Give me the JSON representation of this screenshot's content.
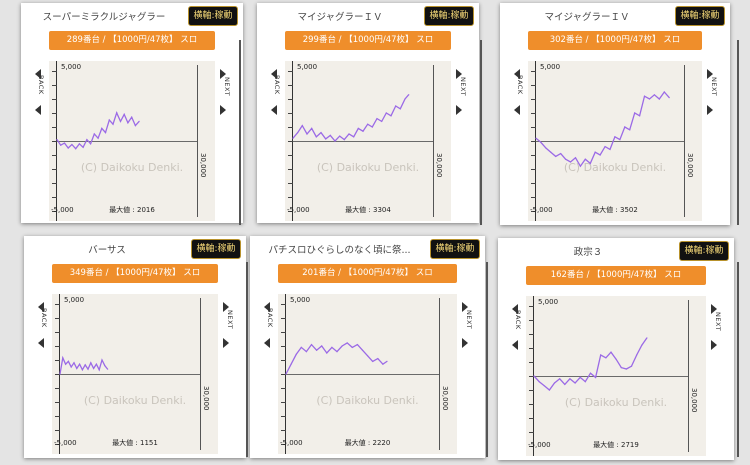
{
  "colors": {
    "line": "#9b6ae6",
    "orange": "#ef8e2b",
    "button_text": "#f3d777"
  },
  "cards": [
    {
      "title": "スーパーミラクルジャグラー",
      "axis_button": "横軸:稼動",
      "info": "289番台 / 【1000円/47枚】 スロ",
      "y_top": "5,000",
      "y_bottom": "-5,000",
      "x_label": "30,000",
      "back": "BACK",
      "next": "NEXT",
      "watermark": "(C) Daikoku Denki.",
      "max_label": "最大値 : 2016",
      "chart_data": {
        "type": "line",
        "ylim": [
          -5000,
          5000
        ],
        "xlim": [
          0,
          30000
        ],
        "x": [
          0,
          800,
          1600,
          2400,
          3200,
          4000,
          4800,
          5600,
          6400,
          7200,
          8000,
          8800,
          9600,
          10400,
          11200,
          12000,
          12800,
          13600,
          14400,
          15200,
          16000,
          16800,
          17600
        ],
        "y": [
          100,
          -300,
          -150,
          -500,
          -250,
          -550,
          -200,
          -450,
          100,
          -200,
          500,
          200,
          900,
          600,
          1500,
          1200,
          2016,
          1400,
          1900,
          1300,
          1700,
          1100,
          1400
        ]
      }
    },
    {
      "title": "マイジャグラーＩＶ",
      "axis_button": "横軸:稼動",
      "info": "299番台 / 【1000円/47枚】 スロ",
      "y_top": "5,000",
      "y_bottom": "-5,000",
      "x_label": "30,000",
      "back": "BACK",
      "next": "NEXT",
      "watermark": "(C) Daikoku Denki.",
      "max_label": "最大値 : 3304",
      "chart_data": {
        "type": "line",
        "ylim": [
          -5000,
          5000
        ],
        "xlim": [
          0,
          30000
        ],
        "x": [
          0,
          1000,
          2000,
          3000,
          4000,
          5000,
          6000,
          7000,
          8000,
          9000,
          10000,
          11000,
          12000,
          13000,
          14000,
          15000,
          16000,
          17000,
          18000,
          19000,
          20000,
          21000,
          22000,
          23000,
          24000,
          24800
        ],
        "y": [
          200,
          600,
          1100,
          500,
          900,
          300,
          600,
          150,
          400,
          0,
          350,
          100,
          500,
          300,
          900,
          700,
          1200,
          1000,
          1600,
          1400,
          2000,
          1800,
          2500,
          2300,
          3000,
          3304
        ]
      }
    },
    {
      "title": "マイジャグラーＩＶ",
      "axis_button": "横軸:稼動",
      "info": "302番台 / 【1000円/47枚】 スロ",
      "y_top": "5,000",
      "y_bottom": "-5,000",
      "x_label": "30,000",
      "back": "BACK",
      "next": "NEXT",
      "watermark": "(C) Daikoku Denki.",
      "max_label": "最大値 : 3502",
      "chart_data": {
        "type": "line",
        "ylim": [
          -5000,
          5000
        ],
        "xlim": [
          0,
          30000
        ],
        "x": [
          0,
          1000,
          2000,
          3000,
          4000,
          5000,
          6000,
          7000,
          8000,
          9000,
          10000,
          11000,
          12000,
          13000,
          14000,
          15000,
          16000,
          17000,
          18000,
          19000,
          20000,
          21000,
          22000,
          23000,
          24000,
          25000,
          26000,
          27000
        ],
        "y": [
          200,
          -100,
          -500,
          -800,
          -1100,
          -900,
          -1300,
          -1500,
          -1200,
          -1800,
          -1300,
          -1600,
          -800,
          -1000,
          -400,
          -600,
          300,
          100,
          1000,
          800,
          2000,
          1800,
          3200,
          3000,
          3300,
          3000,
          3502,
          3100
        ]
      }
    },
    {
      "title": "バーサス",
      "axis_button": "横軸:稼動",
      "info": "349番台 / 【1000円/47枚】 スロ",
      "y_top": "5,000",
      "y_bottom": "-5,000",
      "x_label": "30,000",
      "back": "BACK",
      "next": "NEXT",
      "watermark": "(C) Daikoku Denki.",
      "max_label": "最大値 : 1151",
      "chart_data": {
        "type": "line",
        "ylim": [
          -5000,
          5000
        ],
        "xlim": [
          0,
          30000
        ],
        "x": [
          0,
          600,
          1200,
          1800,
          2400,
          3000,
          3600,
          4200,
          4800,
          5400,
          6000,
          6600,
          7200,
          7800,
          8400,
          9000,
          9600,
          10200
        ],
        "y": [
          0,
          1151,
          700,
          900,
          500,
          800,
          400,
          700,
          300,
          650,
          350,
          800,
          400,
          700,
          300,
          1000,
          600,
          350
        ]
      }
    },
    {
      "title": "パチスロひぐらしのなく頃に祭...",
      "axis_button": "横軸:稼動",
      "info": "201番台 / 【1000円/47枚】 スロ",
      "y_top": "5,000",
      "y_bottom": "-5,000",
      "x_label": "30,000",
      "back": "BACK",
      "next": "NEXT",
      "watermark": "(C) Daikoku Denki.",
      "max_label": "最大値 : 2220",
      "chart_data": {
        "type": "line",
        "ylim": [
          -5000,
          5000
        ],
        "xlim": [
          0,
          30000
        ],
        "x": [
          0,
          1000,
          2000,
          3000,
          4000,
          5000,
          6000,
          7000,
          8000,
          9000,
          10000,
          11000,
          12000,
          13000,
          14000,
          15000,
          16000,
          17000,
          18000,
          19000,
          19800
        ],
        "y": [
          0,
          700,
          1400,
          1900,
          1600,
          2100,
          1700,
          2000,
          1500,
          1900,
          1600,
          2000,
          2220,
          1900,
          2100,
          1700,
          1300,
          900,
          1100,
          700,
          900
        ]
      }
    },
    {
      "title": "政宗３",
      "axis_button": "横軸:稼動",
      "info": "162番台 / 【1000円/47枚】 スロ",
      "y_top": "5,000",
      "y_bottom": "-5,000",
      "x_label": "30,000",
      "back": "BACK",
      "next": "NEXT",
      "watermark": "(C) Daikoku Denki.",
      "max_label": "最大値 : 2719",
      "chart_data": {
        "type": "line",
        "ylim": [
          -5000,
          5000
        ],
        "xlim": [
          0,
          30000
        ],
        "x": [
          0,
          1000,
          2000,
          3000,
          4000,
          5000,
          6000,
          7000,
          8000,
          9000,
          10000,
          11000,
          12000,
          13000,
          14000,
          15000,
          16000,
          17000,
          18000,
          19000,
          20000,
          21000,
          22000
        ],
        "y": [
          0,
          -400,
          -700,
          -1000,
          -500,
          -200,
          -600,
          -200,
          -500,
          -100,
          -400,
          200,
          -100,
          1500,
          1300,
          1700,
          1200,
          600,
          500,
          700,
          1500,
          2200,
          2719
        ]
      }
    }
  ]
}
